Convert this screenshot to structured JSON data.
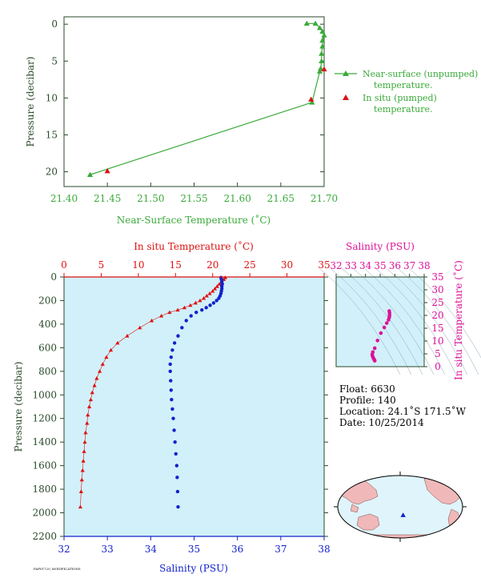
{
  "colors": {
    "green": "#3aaa3a",
    "green_dark": "#2d8a2d",
    "red": "#dd1111",
    "blue": "#1122cc",
    "magenta": "#dd1199",
    "panel_bg": "#d2f0fa",
    "axis_dark": "#2a4a2a",
    "land": "#f0b8b8",
    "ocean": "#dff4fb"
  },
  "chart_data": [
    {
      "type": "line",
      "xlabel": "Near-Surface Temperature (˚C)",
      "ylabel": "Pressure (decibar)",
      "xlim": [
        21.4,
        21.7
      ],
      "ylim": [
        22,
        -1
      ],
      "xticks": [
        "21.40",
        "21.45",
        "21.50",
        "21.55",
        "21.60",
        "21.65",
        "21.70"
      ],
      "yticks": [
        "0",
        "5",
        "10",
        "15",
        "20"
      ],
      "legend": [
        "Near-surface (unpumped) temperature.",
        "In situ (pumped) temperature."
      ],
      "legend_position": "right",
      "series": [
        {
          "name": "Near-surface (unpumped) temperature.",
          "temperature": [
            21.68,
            21.69,
            21.695,
            21.698,
            21.7,
            21.698,
            21.698,
            21.697,
            21.697,
            21.696,
            21.695,
            21.686,
            21.43
          ],
          "pressure": [
            -0.1,
            -0.1,
            0.5,
            1.0,
            1.5,
            2.2,
            3.0,
            4.0,
            5.0,
            6.0,
            6.4,
            10.6,
            20.4
          ]
        },
        {
          "name": "In situ (pumped) temperature.",
          "temperature": [
            21.7,
            21.685,
            21.45
          ],
          "pressure": [
            6.1,
            10.2,
            19.9
          ]
        }
      ]
    },
    {
      "type": "line",
      "xlabel": "Salinity (PSU)",
      "x2label": "In situ Temperature (˚C)",
      "ylabel": "Pressure (decibar)",
      "xlim": [
        32,
        38
      ],
      "x2lim": [
        0,
        35
      ],
      "ylim": [
        2200,
        0
      ],
      "xticks": [
        "32",
        "33",
        "34",
        "35",
        "36",
        "37",
        "38"
      ],
      "x2ticks": [
        "0",
        "5",
        "10",
        "15",
        "20",
        "25",
        "30",
        "35"
      ],
      "yticks": [
        "0",
        "200",
        "400",
        "600",
        "800",
        "1000",
        "1200",
        "1400",
        "1600",
        "1800",
        "2000",
        "2200"
      ],
      "series": [
        {
          "name": "In situ Temperature (˚C)",
          "temperature": [
            21.7,
            21.5,
            21.2,
            20.9,
            20.6,
            20.3,
            20.0,
            19.6,
            19.2,
            18.8,
            18.3,
            17.7,
            17.0,
            16.2,
            15.3,
            14.2,
            13.1,
            11.8,
            10.2,
            8.5,
            7.2,
            6.3,
            5.7,
            5.2,
            4.8,
            4.4,
            4.1,
            3.8,
            3.6,
            3.4,
            3.2,
            3.1,
            2.9,
            2.8,
            2.7,
            2.6,
            2.5,
            2.4,
            2.3,
            2.2
          ],
          "pressure": [
            5,
            20,
            40,
            60,
            80,
            100,
            120,
            140,
            160,
            180,
            200,
            220,
            240,
            260,
            280,
            300,
            330,
            370,
            430,
            500,
            560,
            620,
            680,
            740,
            800,
            860,
            920,
            980,
            1040,
            1100,
            1170,
            1240,
            1320,
            1400,
            1480,
            1560,
            1640,
            1720,
            1820,
            1950
          ]
        },
        {
          "name": "Salinity (PSU)",
          "salinity": [
            35.62,
            35.63,
            35.64,
            35.65,
            35.64,
            35.64,
            35.63,
            35.62,
            35.6,
            35.57,
            35.52,
            35.45,
            35.37,
            35.28,
            35.18,
            35.05,
            34.93,
            34.82,
            34.72,
            34.63,
            34.55,
            34.5,
            34.47,
            34.45,
            34.45,
            34.46,
            34.47,
            34.48,
            34.5,
            34.52,
            34.54,
            34.56,
            34.58,
            34.6,
            34.61,
            34.62,
            34.63
          ],
          "pressure": [
            5,
            20,
            40,
            60,
            80,
            100,
            120,
            140,
            160,
            180,
            200,
            220,
            240,
            260,
            280,
            300,
            330,
            370,
            430,
            500,
            560,
            620,
            680,
            740,
            800,
            880,
            960,
            1040,
            1120,
            1200,
            1300,
            1400,
            1500,
            1600,
            1700,
            1820,
            1950
          ]
        }
      ]
    },
    {
      "type": "scatter",
      "xlabel": "Salinity (PSU)",
      "ylabel": "In situ Temperature (˚C)",
      "xlim": [
        32,
        38
      ],
      "ylim": [
        0,
        35
      ],
      "xticks": [
        "32",
        "33",
        "34",
        "35",
        "36",
        "37",
        "38"
      ],
      "yticks": [
        "0",
        "5",
        "10",
        "15",
        "20",
        "25",
        "30",
        "35"
      ],
      "salinity": [
        35.62,
        35.64,
        35.64,
        35.62,
        35.57,
        35.45,
        35.28,
        35.05,
        34.82,
        34.63,
        34.5,
        34.46,
        34.48,
        34.52,
        34.56,
        34.6,
        34.63
      ],
      "temperature": [
        21.7,
        20.9,
        20.0,
        19.2,
        18.3,
        17.0,
        15.3,
        13.1,
        10.2,
        7.2,
        5.7,
        4.8,
        4.1,
        3.6,
        3.1,
        2.7,
        2.3
      ]
    }
  ],
  "info": {
    "float": "Float:  6630",
    "profile": "Profile:  140",
    "location": "Location:  24.1˚S  171.5˚W",
    "date": "Date:  10/25/2014"
  },
  "map": {
    "float_lon": -171.5,
    "float_lat": -24.1
  },
  "footer_code": "PAP01720_MODIFICATIONS"
}
